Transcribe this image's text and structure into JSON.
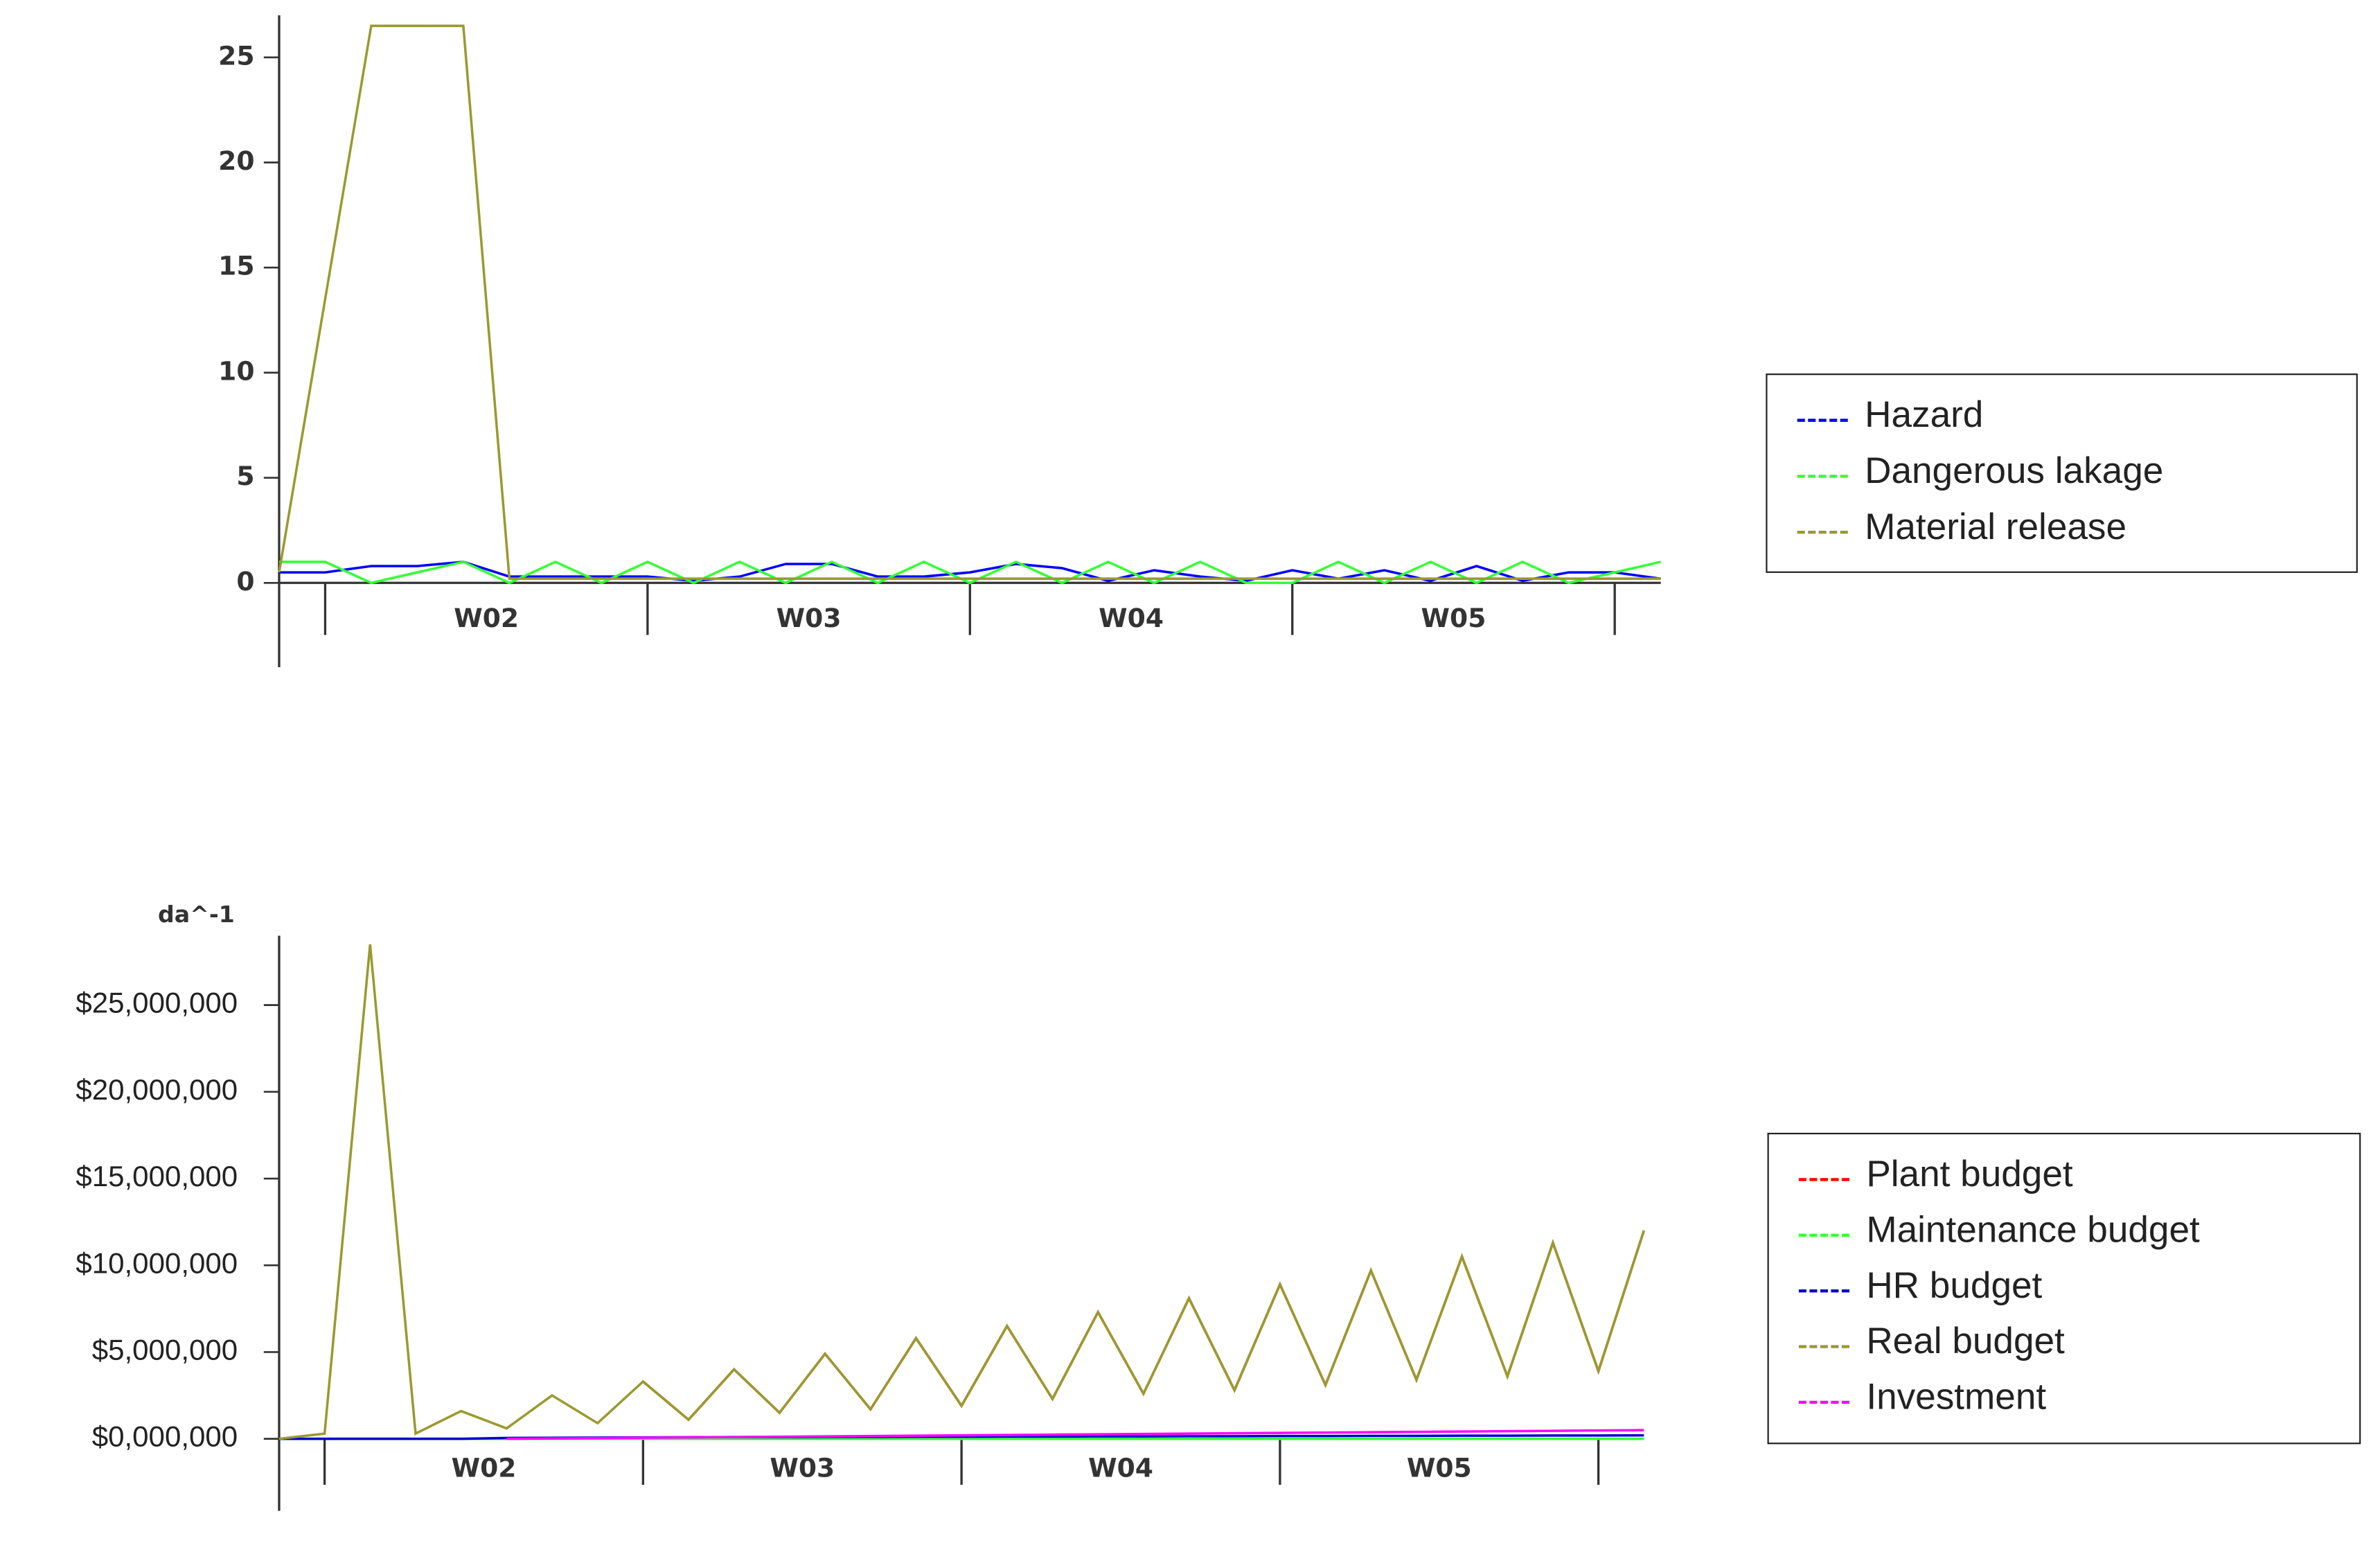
{
  "chart_data": [
    {
      "type": "line",
      "x": [
        0,
        1,
        2,
        3,
        4,
        5,
        6,
        7,
        8,
        9,
        10,
        11,
        12,
        13,
        14,
        15,
        16,
        17,
        18,
        19,
        20,
        21,
        22,
        23,
        24,
        25,
        26,
        27,
        28,
        29,
        30
      ],
      "xlim": [
        0,
        30
      ],
      "xticks": [
        1,
        8,
        15,
        22,
        29
      ],
      "week_labels": [
        {
          "value": 4.5,
          "label": "W02"
        },
        {
          "value": 11.5,
          "label": "W03"
        },
        {
          "value": 18.5,
          "label": "W04"
        },
        {
          "value": 25.5,
          "label": "W05"
        }
      ],
      "ylim": [
        0,
        27
      ],
      "yticks": [
        0,
        5,
        10,
        15,
        20,
        25
      ],
      "legend": "right",
      "series": [
        {
          "name": "Hazard",
          "color": "#0000ff",
          "values": [
            0.5,
            0.5,
            0.8,
            0.8,
            1,
            0.3,
            0.3,
            0.3,
            0.3,
            0.1,
            0.3,
            0.9,
            0.9,
            0.3,
            0.3,
            0.5,
            0.9,
            0.7,
            0.1,
            0.6,
            0.3,
            0.1,
            0.6,
            0.2,
            0.6,
            0.1,
            0.8,
            0.1,
            0.5,
            0.5,
            0.2
          ]
        },
        {
          "name": "Dangerous lakage",
          "color": "#33ff33",
          "values": [
            1,
            1,
            0,
            0.5,
            1,
            0,
            1,
            0,
            1,
            0,
            1,
            0,
            1,
            0,
            1,
            0,
            1,
            0,
            1,
            0,
            1,
            0,
            0,
            1,
            0,
            1,
            0,
            1,
            0,
            0.5,
            1
          ]
        },
        {
          "name": "Material release",
          "color": "#9a9a30",
          "values": [
            0.5,
            13.5,
            26.5,
            26.5,
            26.5,
            0.2,
            0.2,
            0.2,
            0.2,
            0.2,
            0.2,
            0.2,
            0.2,
            0.2,
            0.2,
            0.2,
            0.2,
            0.2,
            0.2,
            0.2,
            0.2,
            0.2,
            0.2,
            0.2,
            0.2,
            0.2,
            0.2,
            0.2,
            0.2,
            0.2,
            0.2
          ]
        }
      ]
    },
    {
      "type": "line",
      "y_label": "da^-1",
      "x": [
        0,
        1,
        2,
        3,
        4,
        5,
        6,
        7,
        8,
        9,
        10,
        11,
        12,
        13,
        14,
        15,
        16,
        17,
        18,
        19,
        20,
        21,
        22,
        23,
        24,
        25,
        26,
        27,
        28,
        29,
        30
      ],
      "xlim": [
        0,
        30
      ],
      "xticks": [
        1,
        8,
        15,
        22,
        29
      ],
      "week_labels": [
        {
          "value": 4.5,
          "label": "W02"
        },
        {
          "value": 11.5,
          "label": "W03"
        },
        {
          "value": 18.5,
          "label": "W04"
        },
        {
          "value": 25.5,
          "label": "W05"
        }
      ],
      "ylim": [
        0,
        29000000
      ],
      "yticks": [
        {
          "value": 0,
          "label": "$0,000,000"
        },
        {
          "value": 5000000,
          "label": "$5,000,000"
        },
        {
          "value": 10000000,
          "label": "$10,000,000"
        },
        {
          "value": 15000000,
          "label": "$15,000,000"
        },
        {
          "value": 20000000,
          "label": "$20,000,000"
        },
        {
          "value": 25000000,
          "label": "$25,000,000"
        }
      ],
      "legend": "right",
      "series": [
        {
          "name": "Plant budget",
          "color": "#ff0000",
          "values": [
            null,
            null,
            null,
            null,
            null,
            null,
            null,
            null,
            3300000,
            1100000,
            4000000,
            1500000,
            4900000,
            1700000,
            5800000,
            1900000,
            6500000,
            2300000,
            7300000,
            2600000,
            8100000,
            2800000,
            8900000,
            3100000,
            9700000,
            3400000,
            10500000,
            3600000,
            11300000,
            3900000,
            12000000
          ]
        },
        {
          "name": "Maintenance budget",
          "color": "#33ff33",
          "values": [
            0,
            0,
            0,
            0,
            0,
            0,
            0,
            0,
            0,
            0,
            0,
            0,
            0,
            0,
            0,
            0,
            0,
            0,
            0,
            0,
            0,
            0,
            0,
            0,
            0,
            0,
            0,
            0,
            0,
            0,
            0
          ]
        },
        {
          "name": "HR budget",
          "color": "#0000cc",
          "values": [
            0,
            0,
            0,
            0,
            0,
            50000,
            60000,
            70000,
            80000,
            90000,
            100000,
            100000,
            110000,
            110000,
            120000,
            120000,
            130000,
            130000,
            140000,
            140000,
            150000,
            150000,
            160000,
            160000,
            170000,
            170000,
            180000,
            180000,
            190000,
            190000,
            200000
          ]
        },
        {
          "name": "Real budget",
          "color": "#9a9a30",
          "values": [
            0,
            300000,
            28500000,
            300000,
            1600000,
            600000,
            2500000,
            900000,
            3300000,
            1100000,
            4000000,
            1500000,
            4900000,
            1700000,
            5800000,
            1900000,
            6500000,
            2300000,
            7300000,
            2600000,
            8100000,
            2800000,
            8900000,
            3100000,
            9700000,
            3400000,
            10500000,
            3600000,
            11300000,
            3900000,
            12000000
          ]
        },
        {
          "name": "Investment",
          "color": "#ff00ff",
          "values": [
            null,
            null,
            null,
            null,
            null,
            0,
            20000,
            40000,
            60000,
            80000,
            100000,
            120000,
            140000,
            160000,
            180000,
            200000,
            220000,
            240000,
            260000,
            280000,
            300000,
            320000,
            340000,
            360000,
            380000,
            400000,
            420000,
            440000,
            460000,
            480000,
            500000
          ]
        }
      ]
    }
  ]
}
